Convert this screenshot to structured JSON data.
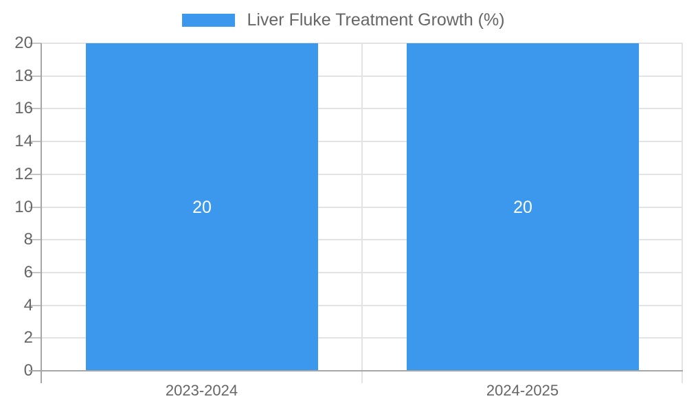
{
  "chart_data": {
    "type": "bar",
    "title": "",
    "legend": {
      "position": "top",
      "label": "Liver Fluke Treatment Growth (%)"
    },
    "categories": [
      "2023-2024",
      "2024-2025"
    ],
    "values": [
      20,
      20
    ],
    "bar_labels": [
      "20",
      "20"
    ],
    "ylabel": "",
    "xlabel": "",
    "ylim": [
      0,
      20
    ],
    "yticks": [
      0,
      2,
      4,
      6,
      8,
      10,
      12,
      14,
      16,
      18,
      20
    ],
    "grid": true,
    "colors": {
      "bar": "#3B98EC",
      "bar_label_text": "#FFFFFF",
      "gridline": "#E3E3E3",
      "tick": "#C4C4C4",
      "axis_line": "#A6A6A6",
      "label_text": "#666666"
    }
  }
}
